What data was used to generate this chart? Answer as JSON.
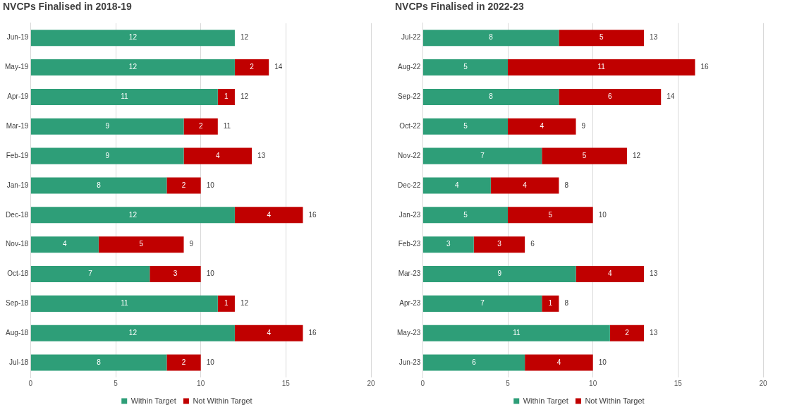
{
  "chart_data": [
    {
      "type": "bar",
      "title": "NVCPs Finalised in 2018-19",
      "orientation": "horizontal",
      "stacked": true,
      "categories": [
        "Jun-19",
        "May-19",
        "Apr-19",
        "Mar-19",
        "Feb-19",
        "Jan-19",
        "Dec-18",
        "Nov-18",
        "Oct-18",
        "Sep-18",
        "Aug-18",
        "Jul-18"
      ],
      "series": [
        {
          "name": "Within Target",
          "color": "#2e9e78",
          "values": [
            12,
            12,
            11,
            9,
            9,
            8,
            12,
            4,
            7,
            11,
            12,
            8
          ]
        },
        {
          "name": "Not Within Target",
          "color": "#c00000",
          "values": [
            null,
            2,
            1,
            2,
            4,
            2,
            4,
            5,
            3,
            1,
            4,
            2
          ]
        }
      ],
      "totals": [
        "12",
        "14",
        "12",
        "11",
        "13",
        "10",
        "16",
        "9",
        "10",
        "12",
        "16",
        "10"
      ],
      "xlim": [
        0,
        20
      ],
      "xticks": [
        0,
        5,
        10,
        15,
        20
      ],
      "grid": "x",
      "legend": "bottom",
      "data_labels": true
    },
    {
      "type": "bar",
      "title": "NVCPs Finalised in 2022-23",
      "orientation": "horizontal",
      "stacked": true,
      "categories": [
        "Jul-22",
        "Aug-22",
        "Sep-22",
        "Oct-22",
        "Nov-22",
        "Dec-22",
        "Jan-23",
        "Feb-23",
        "Mar-23",
        "Apr-23",
        "May-23",
        "Jun-23"
      ],
      "series": [
        {
          "name": "Within Target",
          "color": "#2e9e78",
          "values": [
            8,
            5,
            8,
            5,
            7,
            4,
            5,
            3,
            9,
            7,
            11,
            6
          ]
        },
        {
          "name": "Not Within Target",
          "color": "#c00000",
          "values": [
            5,
            11,
            6,
            4,
            5,
            4,
            5,
            3,
            4,
            1,
            2,
            4
          ]
        }
      ],
      "totals": [
        "13",
        "16",
        "14",
        "9",
        "12",
        "8",
        "10",
        "6",
        "13",
        "8",
        "13",
        "10"
      ],
      "xlim": [
        0,
        20
      ],
      "xticks": [
        0,
        5,
        10,
        15,
        20
      ],
      "grid": "x",
      "legend": "bottom",
      "data_labels": true
    }
  ]
}
